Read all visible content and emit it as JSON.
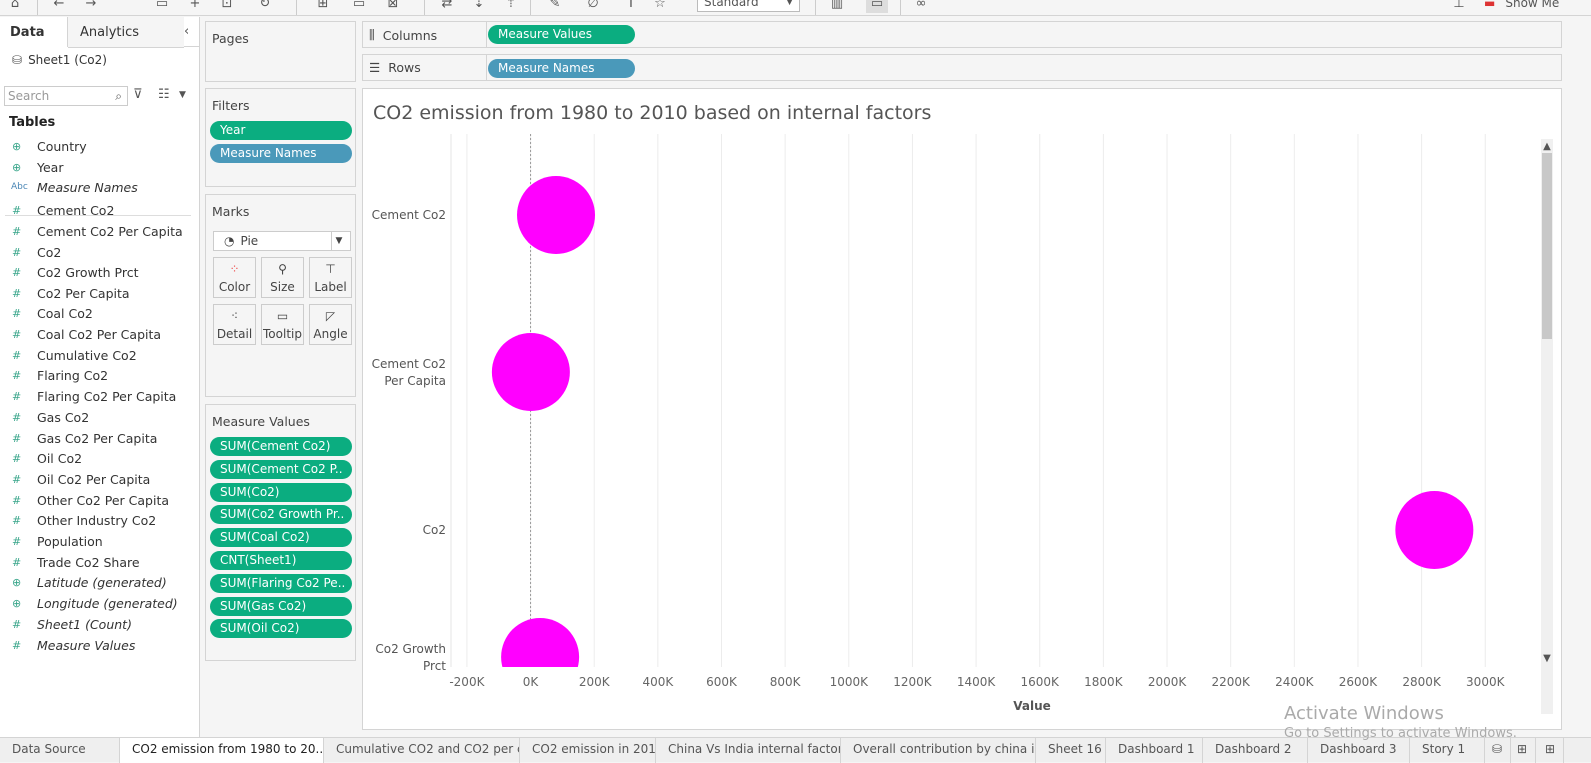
{
  "toolbar": {
    "style_dropdown": "Standard",
    "show_me_label": "Show Me"
  },
  "datapane": {
    "tab_data": "Data",
    "tab_analytics": "Analytics",
    "source": "Sheet1 (Co2)",
    "search_placeholder": "Search",
    "tables_heading": "Tables",
    "fields": [
      {
        "name": "Country",
        "type": "globe",
        "italic": false
      },
      {
        "name": "Year",
        "type": "globe",
        "italic": false
      },
      {
        "name": "Measure Names",
        "type": "abc",
        "italic": true
      },
      {
        "name": "Cement Co2",
        "type": "hash",
        "italic": false
      },
      {
        "name": "Cement Co2 Per Capita",
        "type": "hash",
        "italic": false
      },
      {
        "name": "Co2",
        "type": "hash",
        "italic": false
      },
      {
        "name": "Co2 Growth Prct",
        "type": "hash",
        "italic": false
      },
      {
        "name": "Co2 Per Capita",
        "type": "hash",
        "italic": false
      },
      {
        "name": "Coal Co2",
        "type": "hash",
        "italic": false
      },
      {
        "name": "Coal Co2 Per Capita",
        "type": "hash",
        "italic": false
      },
      {
        "name": "Cumulative Co2",
        "type": "hash",
        "italic": false
      },
      {
        "name": "Flaring Co2",
        "type": "hash",
        "italic": false
      },
      {
        "name": "Flaring Co2 Per Capita",
        "type": "hash",
        "italic": false
      },
      {
        "name": "Gas Co2",
        "type": "hash",
        "italic": false
      },
      {
        "name": "Gas Co2 Per Capita",
        "type": "hash",
        "italic": false
      },
      {
        "name": "Oil Co2",
        "type": "hash",
        "italic": false
      },
      {
        "name": "Oil Co2 Per Capita",
        "type": "hash",
        "italic": false
      },
      {
        "name": "Other Co2 Per Capita",
        "type": "hash",
        "italic": false
      },
      {
        "name": "Other Industry Co2",
        "type": "hash",
        "italic": false
      },
      {
        "name": "Population",
        "type": "hash",
        "italic": false
      },
      {
        "name": "Trade Co2 Share",
        "type": "hash",
        "italic": false
      },
      {
        "name": "Latitude (generated)",
        "type": "globe",
        "italic": true
      },
      {
        "name": "Longitude (generated)",
        "type": "globe",
        "italic": true
      },
      {
        "name": "Sheet1 (Count)",
        "type": "hash",
        "italic": true
      },
      {
        "name": "Measure Values",
        "type": "hash",
        "italic": true
      }
    ]
  },
  "pages": {
    "title": "Pages"
  },
  "filters": {
    "title": "Filters",
    "items": [
      "Year",
      "Measure Names"
    ]
  },
  "marks": {
    "title": "Marks",
    "type": "Pie",
    "buttons": [
      "Color",
      "Size",
      "Label",
      "Detail",
      "Tooltip",
      "Angle"
    ]
  },
  "measure_values": {
    "title": "Measure Values",
    "items": [
      "SUM(Cement Co2)",
      "SUM(Cement Co2 P..",
      "SUM(Co2)",
      "SUM(Co2 Growth Pr..",
      "SUM(Coal Co2)",
      "CNT(Sheet1)",
      "SUM(Flaring Co2 Pe..",
      "SUM(Gas Co2)",
      "SUM(Oil Co2)"
    ]
  },
  "shelves": {
    "columns_label": "Columns",
    "columns_pill": "Measure Values",
    "rows_label": "Rows",
    "rows_pill": "Measure Names"
  },
  "view": {
    "title": "CO2 emission from 1980 to 2010 based on internal factors"
  },
  "chart_data": {
    "type": "scatter",
    "mark": "pie",
    "xlabel": "Value",
    "xlim": [
      -250000,
      3150000
    ],
    "x_ticks": [
      -200000,
      0,
      200000,
      400000,
      600000,
      800000,
      1000000,
      1200000,
      1400000,
      1600000,
      1800000,
      2000000,
      2200000,
      2400000,
      2600000,
      2800000,
      3000000
    ],
    "x_tick_labels": [
      "-200K",
      "0K",
      "200K",
      "400K",
      "600K",
      "800K",
      "1000K",
      "1200K",
      "1400K",
      "1600K",
      "1800K",
      "2000K",
      "2200K",
      "2400K",
      "2600K",
      "2800K",
      "3000K"
    ],
    "categories": [
      "Cement Co2",
      "Cement Co2 Per Capita",
      "Co2",
      "Co2 Growth Prct"
    ],
    "category_labels": [
      [
        "Cement Co2"
      ],
      [
        "Cement Co2",
        "Per Capita"
      ],
      [
        "Co2"
      ],
      [
        "Co2 Growth",
        "Prct"
      ]
    ],
    "values": [
      80000,
      1000,
      2840000,
      30000
    ],
    "color": "#ff00ff",
    "grid": "vertical"
  },
  "sheet_tabs": [
    "Data Source",
    "CO2 emission from 1980 to 20..",
    "Cumulative CO2 and CO2 per ca..",
    "CO2 emission in 2015",
    "China Vs India internal factors",
    "Overall contribution by china in..",
    "Sheet 16",
    "Dashboard 1",
    "Dashboard 2",
    "Dashboard 3",
    "Story 1"
  ],
  "watermark": {
    "line1": "Activate Windows",
    "line2": "Go to Settings to activate Windows."
  }
}
